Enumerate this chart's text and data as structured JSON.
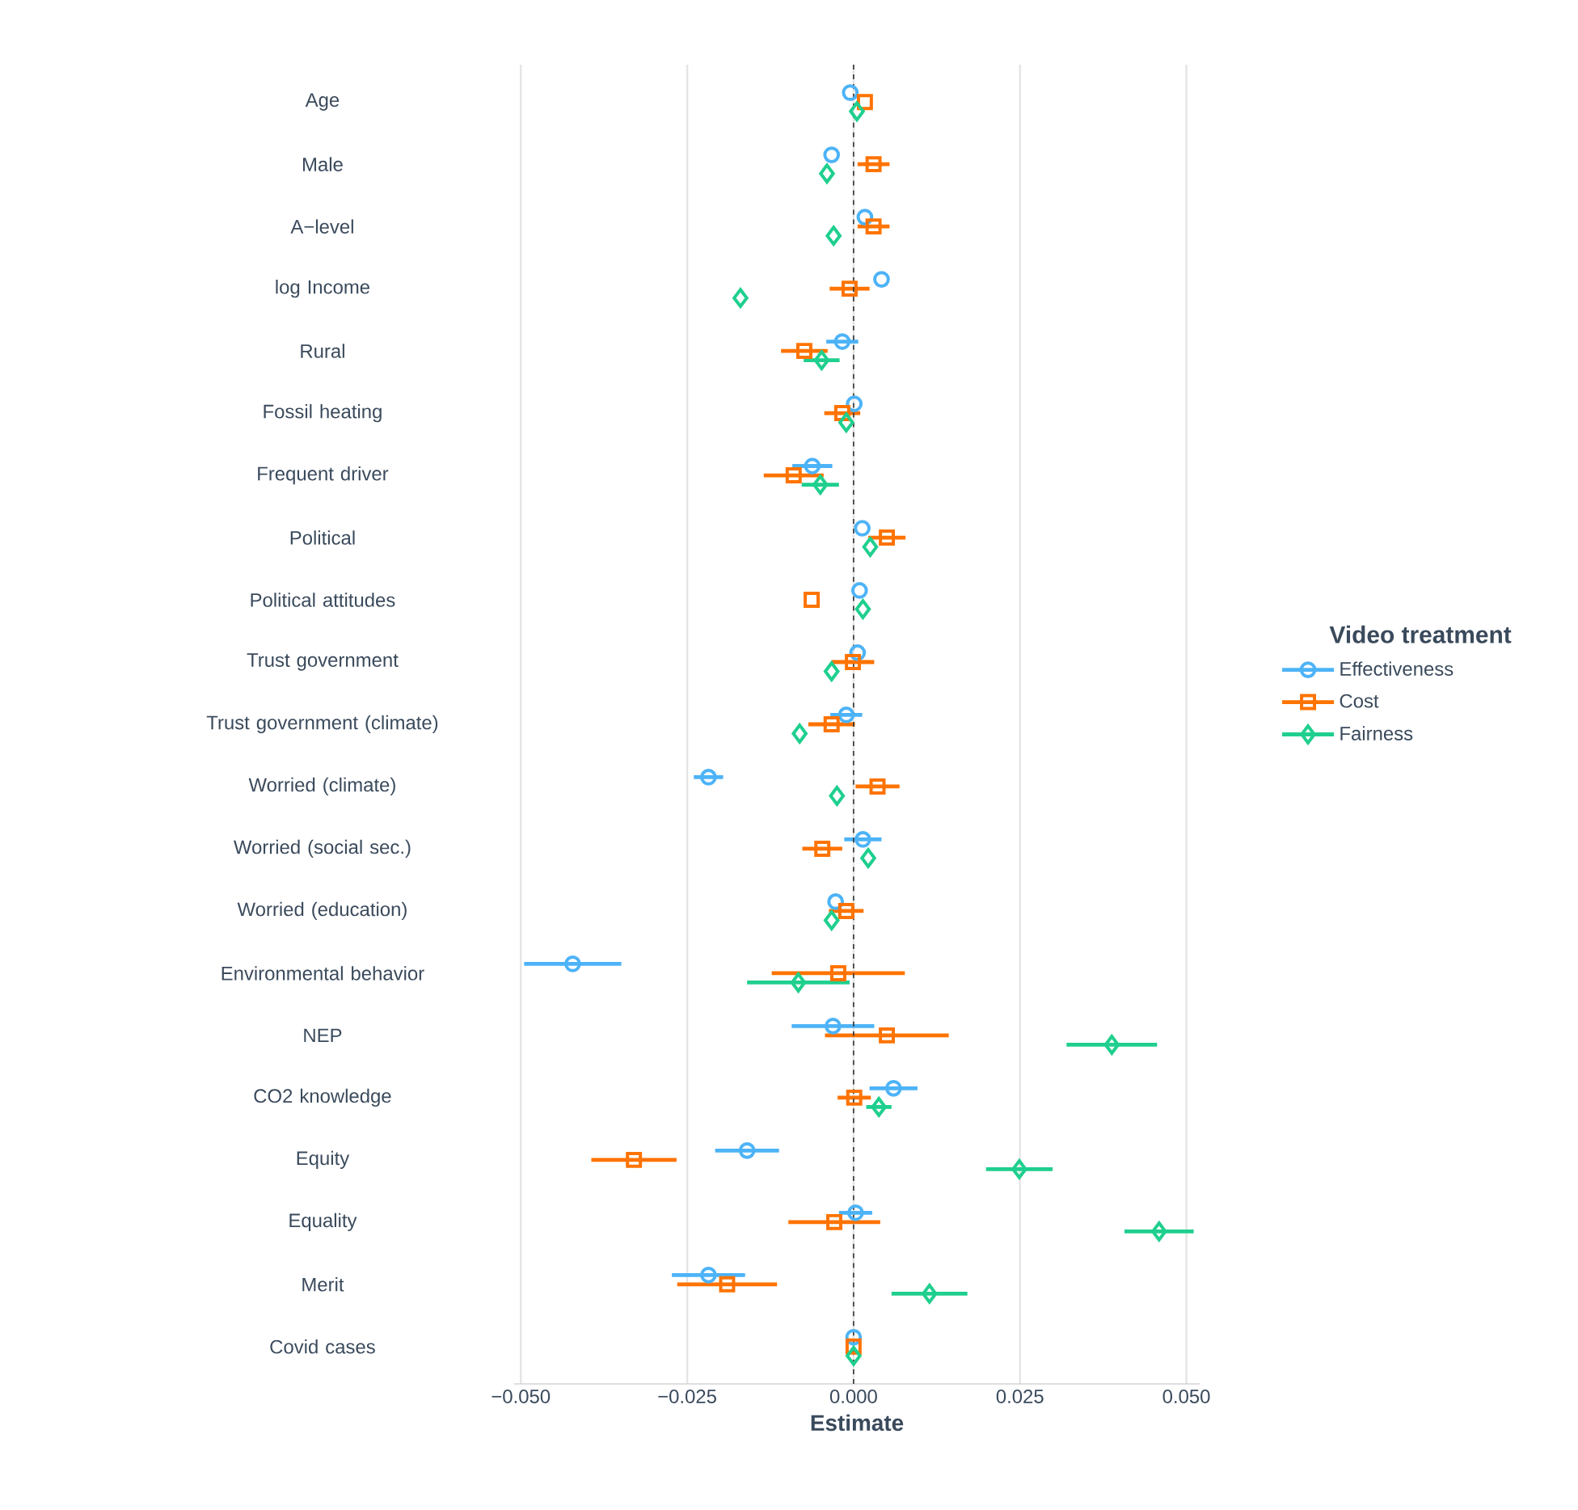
{
  "chart_data": {
    "type": "scatter",
    "orientation": "horizontal",
    "xlabel": "Estimate",
    "legend_title": "Video treatment",
    "legend": "right",
    "grid": "x",
    "categories": [
      "Age",
      "Male",
      "A−level",
      "log Income",
      "Rural",
      "Fossil heating",
      "Frequent driver",
      "Political",
      "Political attitudes",
      "Trust government",
      "Trust government (climate)",
      "Worried (climate)",
      "Worried (social sec.)",
      "Worried (education)",
      "Environmental behavior",
      "NEP",
      "CO2 knowledge",
      "Equity",
      "Equality",
      "Merit",
      "Covid cases"
    ],
    "xlim": [
      -0.051,
      0.052
    ],
    "xticks": [
      {
        "value": -0.05,
        "label": "−0.050"
      },
      {
        "value": -0.025,
        "label": "−0.025"
      },
      {
        "value": 0,
        "label": "0.000"
      },
      {
        "value": 0.025,
        "label": "0.025"
      },
      {
        "value": 0.05,
        "label": "0.050"
      }
    ],
    "ref_lines": [
      {
        "axis": "x",
        "value": 0,
        "line_style": "dashed",
        "color": "#333333"
      }
    ],
    "series": [
      {
        "name": "Effectiveness",
        "color": "#4db3f7",
        "marker": "circle",
        "values": [
          -0.0005,
          -0.0033,
          0.0017,
          0.0042,
          -0.0017,
          0.0001,
          -0.0062,
          0.0013,
          0.0009,
          0.0006,
          -0.0011,
          -0.0218,
          0.0014,
          -0.0027,
          -0.0422,
          -0.0031,
          0.006,
          -0.016,
          0.0003,
          -0.0218,
          0
        ],
        "errors": [
          null,
          null,
          null,
          null,
          0.0024,
          null,
          0.003,
          null,
          null,
          null,
          0.0024,
          0.0022,
          0.0028,
          null,
          0.0073,
          0.0062,
          0.0036,
          0.0048,
          0.0025,
          0.0055,
          null
        ]
      },
      {
        "name": "Cost",
        "color": "#ff7300",
        "marker": "square",
        "values": [
          0.0017,
          0.003,
          0.003,
          -0.0006,
          -0.0074,
          -0.0017,
          -0.009,
          0.005,
          -0.0063,
          -0.0001,
          -0.0033,
          0.0036,
          -0.0047,
          -0.0011,
          -0.0023,
          0.005,
          0.0001,
          -0.033,
          -0.0029,
          -0.019,
          0
        ],
        "errors": [
          null,
          0.0024,
          0.0024,
          0.003,
          0.0035,
          0.0027,
          0.0045,
          0.0028,
          null,
          0.0032,
          0.0035,
          0.0033,
          0.003,
          0.0026,
          0.01,
          0.0093,
          0.0025,
          0.0064,
          0.0069,
          0.0075,
          null
        ]
      },
      {
        "name": "Fairness",
        "color": "#1fcf8e",
        "marker": "diamond",
        "values": [
          0.0005,
          -0.004,
          -0.003,
          -0.017,
          -0.0048,
          -0.0011,
          -0.005,
          0.0025,
          0.0014,
          -0.0033,
          -0.0081,
          -0.0025,
          0.0022,
          -0.0033,
          -0.0083,
          0.0388,
          0.0038,
          0.0249,
          0.0459,
          0.0114,
          0
        ],
        "errors": [
          null,
          null,
          null,
          null,
          0.0027,
          null,
          0.0028,
          null,
          null,
          null,
          null,
          null,
          null,
          null,
          0.0077,
          0.0068,
          0.0019,
          0.005,
          0.0052,
          0.0057,
          null
        ]
      }
    ]
  }
}
